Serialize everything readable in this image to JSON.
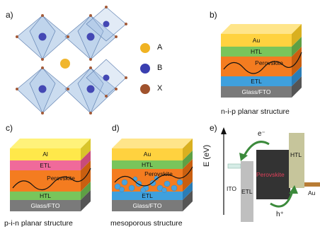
{
  "panels": {
    "a": {
      "label": "a)",
      "legend": [
        {
          "key": "A",
          "color": "#f0b323"
        },
        {
          "key": "B",
          "color": "#3a3fb0"
        },
        {
          "key": "X",
          "color": "#a0522d"
        }
      ]
    },
    "b": {
      "label": "b)",
      "caption": "n-i-p planar structure",
      "layers": [
        "Au",
        "HTL",
        "Perovskite",
        "ETL",
        "Glass/FTO"
      ]
    },
    "c": {
      "label": "c)",
      "caption": "p-i-n planar structure",
      "layers": [
        "Al",
        "ETL",
        "Perovskite",
        "HTL",
        "Glass/FTO"
      ]
    },
    "d": {
      "label": "d)",
      "caption": "mesoporous structure",
      "layers": [
        "Au",
        "HTL",
        "Perovskite",
        "ETL",
        "Glass/FTO"
      ]
    },
    "e": {
      "label": "e)",
      "axis_label": "E (eV)",
      "blocks": [
        "ITO",
        "ETL",
        "Perovskite",
        "HTL",
        "Au"
      ],
      "electron": "e⁻",
      "hole": "h⁺"
    }
  },
  "colors": {
    "au": "#ffd23f",
    "htl": "#79c55b",
    "perovskite": "#f47c20",
    "etl": "#3fa0dd",
    "glass": "#7a7a7a",
    "al": "#ffe84a",
    "etl_pink": "#f06a9a",
    "octahedron": "#9bbbe0",
    "arrow_green": "#3b8a3b"
  }
}
